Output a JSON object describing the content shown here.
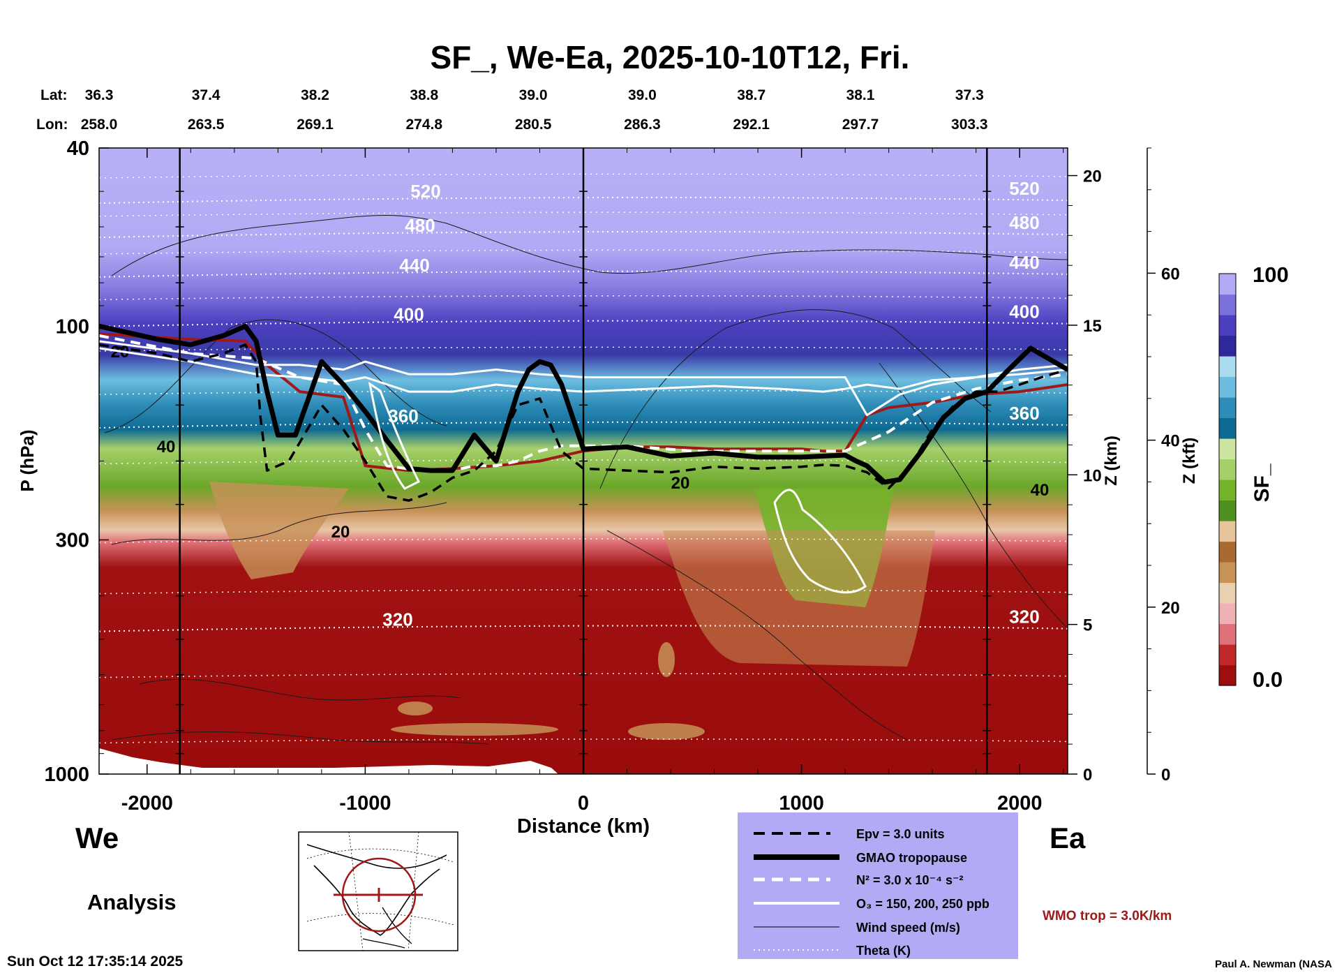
{
  "chart_data": {
    "type": "heatmap",
    "title": "SF_, We-Ea, 2025-10-10T12, Fri.",
    "xlabel": "Distance (km)",
    "ylabel": "P (hPa)",
    "y2label": "Z (km)",
    "y3label": "Z (kft)",
    "colorbar_label": "SF_",
    "x_range": [
      -2220,
      2220
    ],
    "x_ticks": [
      -2000,
      -1000,
      0,
      1000,
      2000
    ],
    "x_tick_labels": [
      "-2000",
      "-1000",
      "0",
      "1000",
      "2000"
    ],
    "p_range": [
      40,
      1000
    ],
    "p_ticks": [
      40,
      100,
      300,
      1000
    ],
    "p_tick_labels": [
      "40",
      "100",
      "300",
      "1000"
    ],
    "z_km_ticks": [
      0,
      5,
      10,
      15,
      20
    ],
    "z_km_tick_labels": [
      "0",
      "5",
      "10",
      "15",
      "20"
    ],
    "z_kft_ticks": [
      0,
      20,
      40,
      60
    ],
    "z_kft_tick_labels": [
      "0",
      "20",
      "40",
      "60"
    ],
    "colorbar_range": [
      0,
      100
    ],
    "colorbar_labels": [
      "100",
      "0.0"
    ],
    "colorbar_colors": [
      "#9d0e0e",
      "#c0282a",
      "#e0707a",
      "#efb0b6",
      "#e9d0b0",
      "#c79258",
      "#a86a30",
      "#e8c49c",
      "#4f8f1e",
      "#74b32a",
      "#a6d06a",
      "#cde59e",
      "#0e6a93",
      "#2e8cb8",
      "#6dbde0",
      "#aadcf0",
      "#30289a",
      "#4c40c0",
      "#7a70dc",
      "#b2aaf4"
    ],
    "lat_label": "Lat:",
    "lon_label": "Lon:",
    "lat_lon_x": [
      -2220,
      -1730,
      -1230,
      -730,
      -230,
      270,
      770,
      1270,
      1770
    ],
    "lat_values": [
      "36.3",
      "37.4",
      "38.2",
      "38.8",
      "39.0",
      "39.0",
      "38.7",
      "38.1",
      "37.3"
    ],
    "lon_values": [
      "258.0",
      "263.5",
      "269.1",
      "274.8",
      "280.5",
      "286.3",
      "292.1",
      "297.7",
      "303.3"
    ],
    "vertical_markers_km": [
      -1850,
      0,
      1850
    ],
    "left_label": "We",
    "right_label": "Ea",
    "analysis_label": "Analysis",
    "series": [
      {
        "name": "GMAO tropopause",
        "x": [
          -2220,
          -1950,
          -1800,
          -1650,
          -1550,
          -1500,
          -1450,
          -1400,
          -1320,
          -1200,
          -1100,
          -1000,
          -900,
          -800,
          -700,
          -600,
          -500,
          -400,
          -300,
          -250,
          -200,
          -150,
          -100,
          0,
          200,
          400,
          600,
          800,
          1000,
          1100,
          1200,
          1250,
          1300,
          1380,
          1450,
          1550,
          1650,
          1750,
          1850,
          1950,
          2050,
          2220
        ],
        "p": [
          100,
          107,
          110,
          105,
          100,
          108,
          140,
          175,
          175,
          120,
          135,
          155,
          180,
          208,
          210,
          210,
          175,
          200,
          140,
          125,
          120,
          122,
          135,
          188,
          186,
          195,
          192,
          196,
          196,
          195,
          194,
          200,
          205,
          223,
          220,
          190,
          160,
          145,
          140,
          125,
          112,
          125
        ]
      },
      {
        "name": "Epv = 3.0 units",
        "x": [
          -2220,
          -1950,
          -1800,
          -1650,
          -1550,
          -1500,
          -1480,
          -1450,
          -1350,
          -1200,
          -1100,
          -1000,
          -900,
          -800,
          -700,
          -600,
          -500,
          -400,
          -300,
          -200,
          -100,
          0,
          200,
          400,
          600,
          800,
          1000,
          1100,
          1200,
          1300,
          1400,
          1500,
          1600,
          1700,
          1800,
          1900,
          2000,
          2100,
          2220
        ],
        "p": [
          110,
          115,
          120,
          115,
          110,
          120,
          160,
          210,
          200,
          150,
          170,
          200,
          240,
          245,
          235,
          218,
          210,
          190,
          150,
          145,
          190,
          208,
          210,
          212,
          206,
          208,
          206,
          204,
          205,
          212,
          230,
          205,
          170,
          150,
          140,
          140,
          135,
          130,
          125
        ]
      },
      {
        "name": "N² = 3.0 x 10⁻⁴ s⁻²",
        "x": [
          -2220,
          -1800,
          -1500,
          -1300,
          -1100,
          -1000,
          -900,
          -750,
          -600,
          -500,
          -400,
          -300,
          -200,
          -100,
          0,
          200,
          500,
          800,
          1000,
          1200,
          1400,
          1600,
          1800,
          2000,
          2220
        ],
        "p": [
          105,
          115,
          118,
          130,
          135,
          170,
          205,
          210,
          210,
          205,
          205,
          200,
          190,
          185,
          185,
          185,
          190,
          190,
          190,
          190,
          172,
          148,
          138,
          132,
          128
        ]
      },
      {
        "name": "O3 = 150, 200, 250 ppb",
        "x": [
          -2220,
          -1800,
          -1500,
          -1300,
          -1100,
          -1000,
          -800,
          -600,
          -400,
          -200,
          0,
          300,
          600,
          900,
          1100,
          1200,
          1300,
          1450,
          1600,
          1800,
          2000,
          2220
        ],
        "p": [
          108,
          115,
          122,
          122,
          125,
          120,
          128,
          128,
          125,
          128,
          130,
          130,
          130,
          130,
          130,
          130,
          158,
          142,
          135,
          130,
          125,
          122
        ]
      },
      {
        "name": "O3 = 150, 200, 250 ppb",
        "x": [
          -2220,
          -1800,
          -1500,
          -1300,
          -1100,
          -1000,
          -800,
          -600,
          -400,
          -200,
          0,
          300,
          600,
          900,
          1100,
          1200,
          1300,
          1450,
          1600,
          1800,
          2000,
          2220
        ],
        "p": [
          112,
          120,
          128,
          130,
          133,
          130,
          140,
          140,
          135,
          138,
          140,
          138,
          136,
          138,
          140,
          138,
          135,
          138,
          132,
          130,
          128,
          125
        ]
      },
      {
        "name": "WMO trop = 3.0K/km",
        "x": [
          -2220,
          -1800,
          -1550,
          -1450,
          -1300,
          -1100,
          -1000,
          -800,
          -600,
          -400,
          -200,
          0,
          200,
          400,
          600,
          800,
          1000,
          1100,
          1200,
          1300,
          1400,
          1600,
          1800,
          2000,
          2220
        ],
        "p": [
          104,
          107,
          108,
          122,
          140,
          144,
          205,
          210,
          208,
          205,
          200,
          190,
          186,
          186,
          188,
          188,
          188,
          190,
          190,
          158,
          152,
          148,
          142,
          140,
          135
        ]
      }
    ],
    "theta_levels": [
      {
        "label": "520",
        "p": 52
      },
      {
        "label": "480",
        "p": 62
      },
      {
        "label": "440",
        "p": 76
      },
      {
        "label": "400",
        "p": 98
      },
      {
        "label": "360",
        "p": 165
      },
      {
        "label": "320",
        "p": 470
      }
    ],
    "wind_speed_labels": [
      "20",
      "40",
      "20",
      "20",
      "40"
    ],
    "legend": [
      {
        "label": "Epv = 3.0 units"
      },
      {
        "label": "GMAO tropopause"
      },
      {
        "label": "N² = 3.0 x 10⁻⁴ s⁻²"
      },
      {
        "label": "O₃ = 150, 200, 250 ppb"
      },
      {
        "label": "Wind speed (m/s)"
      },
      {
        "label": "Theta (K)"
      }
    ],
    "wmo_label": "WMO trop = 3.0K/km",
    "colors": {
      "legend_bg": "#b2aaf4",
      "wmo": "#a01818",
      "tropopause": "#000000",
      "o3": "#ffffff"
    }
  },
  "footer": {
    "timestamp": "Sun Oct 12 17:35:14 2025",
    "credit": "Paul A. Newman (NASA"
  }
}
